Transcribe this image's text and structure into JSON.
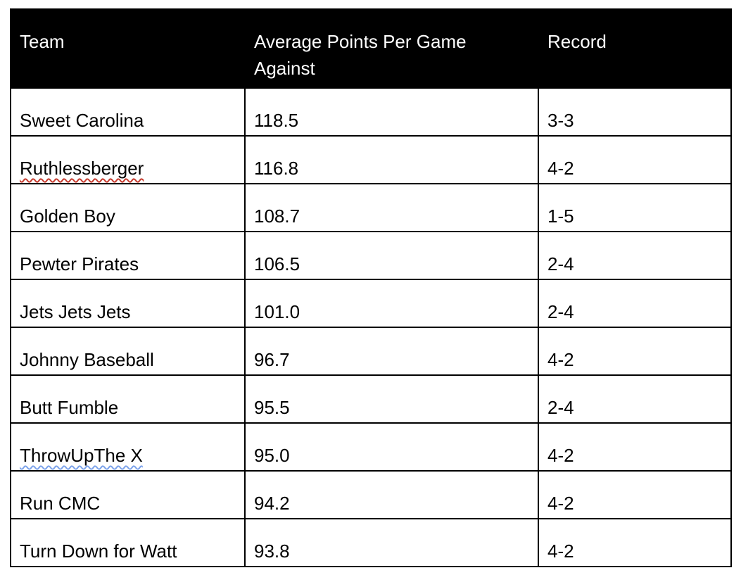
{
  "table": {
    "columns": [
      {
        "key": "team",
        "label": "Team"
      },
      {
        "key": "avg_points_against",
        "label": "Average Points Per Game Against"
      },
      {
        "key": "record",
        "label": "Record"
      }
    ],
    "rows": [
      {
        "team": "Sweet Carolina",
        "avg_points_against": "118.5",
        "record": "3-3",
        "spellcheck_underline": null
      },
      {
        "team": "Ruthlessberger",
        "avg_points_against": "116.8",
        "record": "4-2",
        "spellcheck_underline": "red"
      },
      {
        "team": "Golden Boy",
        "avg_points_against": "108.7",
        "record": "1-5",
        "spellcheck_underline": null
      },
      {
        "team": "Pewter Pirates",
        "avg_points_against": "106.5",
        "record": "2-4",
        "spellcheck_underline": null
      },
      {
        "team": "Jets Jets Jets",
        "avg_points_against": "101.0",
        "record": "2-4",
        "spellcheck_underline": null
      },
      {
        "team": "Johnny Baseball",
        "avg_points_against": "96.7",
        "record": "4-2",
        "spellcheck_underline": null
      },
      {
        "team": "Butt Fumble",
        "avg_points_against": "95.5",
        "record": "2-4",
        "spellcheck_underline": null
      },
      {
        "team": "ThrowUpThe X",
        "avg_points_against": "95.0",
        "record": "4-2",
        "spellcheck_underline": "blue"
      },
      {
        "team": "Run CMC",
        "avg_points_against": "94.2",
        "record": "4-2",
        "spellcheck_underline": null
      },
      {
        "team": "Turn Down for Watt",
        "avg_points_against": "93.8",
        "record": "4-2",
        "spellcheck_underline": null
      }
    ],
    "colors": {
      "header_bg": "#000000",
      "header_text": "#ffffff",
      "body_text": "#000000",
      "border": "#000000",
      "spellcheck_red": "#c53b2e",
      "grammar_blue": "#7da3ea"
    }
  }
}
